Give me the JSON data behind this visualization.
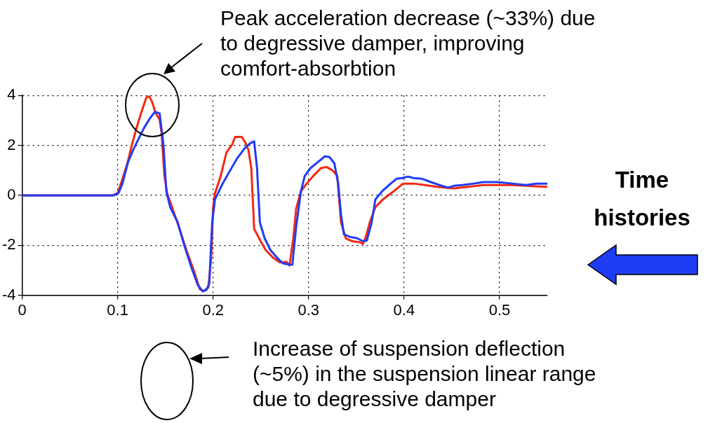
{
  "chart_data": {
    "type": "line",
    "xlim": [
      0,
      0.55
    ],
    "xticks": [
      0,
      0.1,
      0.2,
      0.3,
      0.4,
      0.5
    ],
    "ylim": [
      -4,
      4
    ],
    "yticks": [
      -4,
      -2,
      0,
      2,
      4
    ],
    "grid": true,
    "legend": false,
    "marker": "none",
    "line_style": "solid",
    "annotations": [
      "Peak acceleration decrease (~33%) due\nto degressive damper, improving\ncomfort-absorbtion",
      "Time\nhistories",
      "Increase of suspension deflection\n(~5%) in the suspension linear range\ndue to degressive damper"
    ],
    "series": [
      {
        "color": "#1f3cf5",
        "x": [
          0,
          0.096,
          0.101,
          0.105,
          0.111,
          0.117,
          0.123,
          0.128,
          0.134,
          0.139,
          0.144,
          0.148,
          0.151,
          0.155,
          0.163,
          0.17,
          0.178,
          0.184,
          0.189,
          0.193,
          0.196,
          0.199,
          0.202,
          0.21,
          0.217,
          0.225,
          0.233,
          0.239,
          0.243,
          0.246,
          0.249,
          0.254,
          0.26,
          0.267,
          0.273,
          0.281,
          0.283,
          0.287,
          0.292,
          0.296,
          0.302,
          0.31,
          0.317,
          0.322,
          0.327,
          0.331,
          0.334,
          0.337,
          0.343,
          0.351,
          0.357,
          0.361,
          0.366,
          0.37,
          0.377,
          0.386,
          0.392,
          0.398,
          0.404,
          0.41,
          0.419,
          0.428,
          0.437,
          0.446,
          0.452,
          0.461,
          0.473,
          0.483,
          0.498,
          0.513,
          0.528,
          0.539,
          0.55
        ],
        "values": [
          0,
          0,
          0.09,
          0.47,
          1.34,
          1.88,
          2.34,
          2.72,
          3.09,
          3.34,
          3.28,
          2.03,
          0.16,
          -0.47,
          -1.09,
          -2.03,
          -2.97,
          -3.59,
          -3.84,
          -3.78,
          -3.53,
          -1.09,
          -0.16,
          0.47,
          0.94,
          1.47,
          1.88,
          2.09,
          2.16,
          1.09,
          -1.09,
          -1.72,
          -2.19,
          -2.5,
          -2.72,
          -2.78,
          -2.78,
          -1.25,
          0.16,
          0.78,
          1.09,
          1.34,
          1.56,
          1.53,
          1.28,
          0.47,
          -0.78,
          -1.56,
          -1.66,
          -1.72,
          -1.84,
          -1.81,
          -1.09,
          -0.16,
          0.16,
          0.47,
          0.66,
          0.69,
          0.75,
          0.69,
          0.66,
          0.53,
          0.41,
          0.31,
          0.38,
          0.41,
          0.47,
          0.53,
          0.53,
          0.47,
          0.41,
          0.47,
          0.47
        ]
      },
      {
        "color": "#f5280f",
        "x": [
          0,
          0.095,
          0.1,
          0.104,
          0.11,
          0.115,
          0.12,
          0.125,
          0.13,
          0.133,
          0.136,
          0.14,
          0.144,
          0.146,
          0.149,
          0.152,
          0.157,
          0.164,
          0.172,
          0.18,
          0.186,
          0.19,
          0.195,
          0.198,
          0.2,
          0.202,
          0.208,
          0.214,
          0.22,
          0.223,
          0.23,
          0.234,
          0.237,
          0.24,
          0.243,
          0.249,
          0.255,
          0.263,
          0.27,
          0.277,
          0.28,
          0.284,
          0.287,
          0.292,
          0.298,
          0.305,
          0.313,
          0.319,
          0.325,
          0.33,
          0.334,
          0.339,
          0.346,
          0.354,
          0.357,
          0.36,
          0.364,
          0.37,
          0.378,
          0.389,
          0.399,
          0.41,
          0.422,
          0.434,
          0.452,
          0.467,
          0.483,
          0.498,
          0.513,
          0.528,
          0.55
        ],
        "values": [
          0,
          0,
          0.09,
          0.53,
          1.25,
          2.03,
          2.72,
          3.34,
          3.91,
          3.97,
          3.75,
          3.28,
          3.03,
          2.5,
          0.78,
          0.06,
          -0.47,
          -1.25,
          -2.19,
          -3.03,
          -3.75,
          -3.84,
          -3.69,
          -2.5,
          -0.47,
          0.09,
          0.78,
          1.72,
          2.03,
          2.34,
          2.34,
          2.09,
          1.81,
          1.09,
          -1.34,
          -1.78,
          -2.19,
          -2.5,
          -2.69,
          -2.66,
          -2.81,
          -1.72,
          -0.53,
          0.16,
          0.47,
          0.78,
          1.09,
          1.13,
          1,
          0.78,
          -1.09,
          -1.72,
          -1.84,
          -1.88,
          -1.94,
          -1.66,
          -1.09,
          -0.47,
          -0.16,
          0.16,
          0.47,
          0.47,
          0.41,
          0.34,
          0.28,
          0.34,
          0.41,
          0.41,
          0.41,
          0.38,
          0.34
        ]
      }
    ]
  }
}
